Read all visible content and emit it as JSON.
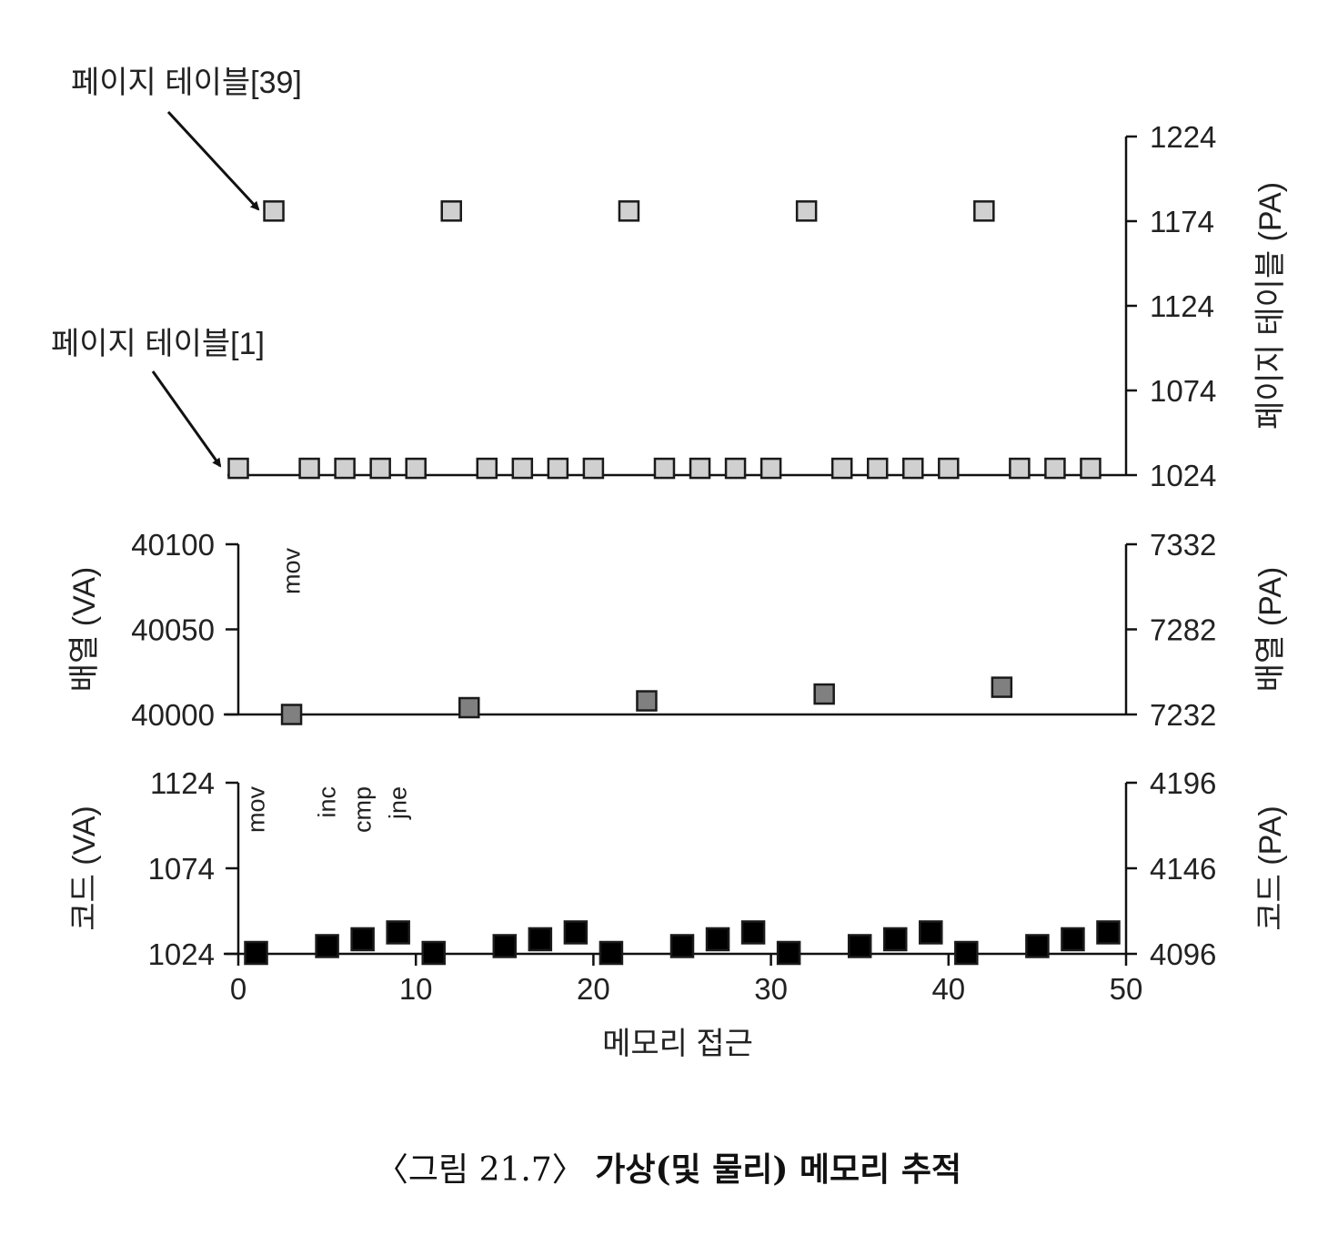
{
  "chart_data": [
    {
      "type": "scatter",
      "panel": "page-table",
      "ylabel_right": "페이지 테이블 (PA)",
      "ylim_right": [
        1024,
        1224
      ],
      "yticks_right": [
        "1024",
        "1074",
        "1124",
        "1174",
        "1224"
      ],
      "marker_color": "#d0d0d0",
      "series": [
        {
          "name": "페이지 테이블[39]",
          "x": [
            2,
            12,
            22,
            32,
            42
          ],
          "y": [
            1180,
            1180,
            1180,
            1180,
            1180
          ]
        },
        {
          "name": "페이지 테이블[1]",
          "x": [
            0,
            4,
            6,
            8,
            10,
            14,
            16,
            18,
            20,
            24,
            26,
            28,
            30,
            34,
            36,
            38,
            40,
            44,
            46,
            48
          ],
          "y": [
            1028,
            1028,
            1028,
            1028,
            1028,
            1028,
            1028,
            1028,
            1028,
            1028,
            1028,
            1028,
            1028,
            1028,
            1028,
            1028,
            1028,
            1028,
            1028,
            1028
          ]
        }
      ],
      "annotations": [
        "페이지 테이블[39]",
        "페이지 테이블[1]"
      ]
    },
    {
      "type": "scatter",
      "panel": "array",
      "ylabel_left": "배열 (VA)",
      "ylabel_right": "배열 (PA)",
      "ylim_left": [
        40000,
        40100
      ],
      "ylim_right": [
        7232,
        7332
      ],
      "yticks_left": [
        "40000",
        "40050",
        "40100"
      ],
      "yticks_right": [
        "7232",
        "7282",
        "7332"
      ],
      "marker_color": "#808080",
      "series": [
        {
          "x": [
            3,
            13,
            23,
            33,
            43
          ],
          "y": [
            40000,
            40004,
            40008,
            40012,
            40016
          ]
        }
      ],
      "instruction_labels": [
        {
          "x": 3,
          "text": "mov"
        }
      ]
    },
    {
      "type": "scatter",
      "panel": "code",
      "ylabel_left": "코드 (VA)",
      "ylabel_right": "코드 (PA)",
      "ylim_left": [
        1024,
        1124
      ],
      "ylim_right": [
        4096,
        4196
      ],
      "yticks_left": [
        "1024",
        "1074",
        "1124"
      ],
      "yticks_right": [
        "4096",
        "4146",
        "4196"
      ],
      "marker_color": "#000000",
      "series": [
        {
          "x": [
            1,
            5,
            7,
            9,
            11,
            15,
            17,
            19,
            21,
            25,
            27,
            29,
            31,
            35,
            37,
            39,
            41,
            45,
            47,
            49
          ],
          "y": [
            1024,
            1028,
            1032,
            1036,
            1024,
            1028,
            1032,
            1036,
            1024,
            1028,
            1032,
            1036,
            1024,
            1028,
            1032,
            1036,
            1024,
            1028,
            1032,
            1036
          ]
        }
      ],
      "instruction_labels": [
        {
          "x": 1,
          "text": "mov"
        },
        {
          "x": 5,
          "text": "inc"
        },
        {
          "x": 7,
          "text": "cmp"
        },
        {
          "x": 9,
          "text": "jne"
        }
      ],
      "xlim": [
        0,
        50
      ],
      "xticks": [
        "0",
        "10",
        "20",
        "30",
        "40",
        "50"
      ],
      "xlabel": "메모리 접근"
    }
  ],
  "caption": {
    "number": "〈그림 21.7〉",
    "title": "가상(및 물리) 메모리 추적"
  }
}
